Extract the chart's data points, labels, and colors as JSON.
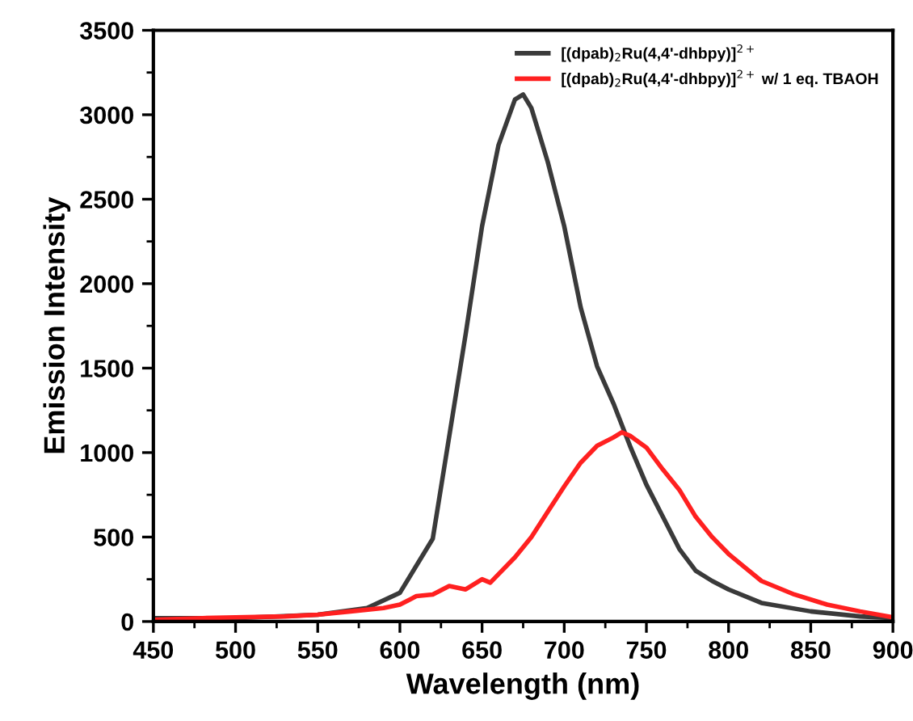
{
  "chart_data": {
    "type": "line",
    "xlabel": "Wavelength (nm)",
    "ylabel": "Emission Intensity",
    "xlim": [
      450,
      900
    ],
    "xticks": [
      450,
      500,
      550,
      600,
      650,
      700,
      750,
      800,
      850,
      900
    ],
    "ylim": [
      0,
      3500
    ],
    "yticks": [
      0,
      500,
      1000,
      1500,
      2000,
      2500,
      3000,
      3500
    ],
    "grid": false,
    "legend": "top right",
    "marker": "none",
    "line_style": "solid",
    "series": [
      {
        "name": "[(dpab)$_{2}$Ru(4,4'-dhbpy)]$^{2+}$",
        "color": "#3a3a3a",
        "x": [
          450,
          500,
          550,
          580,
          600,
          620,
          640,
          650,
          660,
          670,
          675,
          680,
          690,
          700,
          710,
          720,
          730,
          740,
          750,
          760,
          770,
          780,
          790,
          800,
          820,
          850,
          880,
          900
        ],
        "values": [
          20,
          20,
          40,
          80,
          170,
          490,
          1700,
          2340,
          2820,
          3090,
          3120,
          3040,
          2720,
          2340,
          1860,
          1510,
          1290,
          1040,
          810,
          620,
          430,
          300,
          240,
          190,
          110,
          60,
          30,
          20
        ]
      },
      {
        "name": "[(dpab)$_{2}$Ru(4,4'-dhbpy)]$^{2+}$ w/ 1 eq. TBAOH",
        "color": "#ff2020",
        "x": [
          450,
          480,
          500,
          530,
          550,
          570,
          590,
          600,
          610,
          620,
          630,
          640,
          650,
          655,
          660,
          670,
          680,
          690,
          700,
          710,
          720,
          730,
          735,
          740,
          750,
          760,
          770,
          780,
          790,
          800,
          810,
          820,
          840,
          860,
          880,
          900
        ],
        "values": [
          10,
          20,
          25,
          30,
          40,
          60,
          80,
          100,
          150,
          160,
          210,
          190,
          250,
          230,
          280,
          380,
          500,
          650,
          800,
          940,
          1040,
          1090,
          1120,
          1100,
          1030,
          900,
          780,
          620,
          500,
          400,
          320,
          240,
          160,
          100,
          60,
          25
        ]
      }
    ]
  }
}
